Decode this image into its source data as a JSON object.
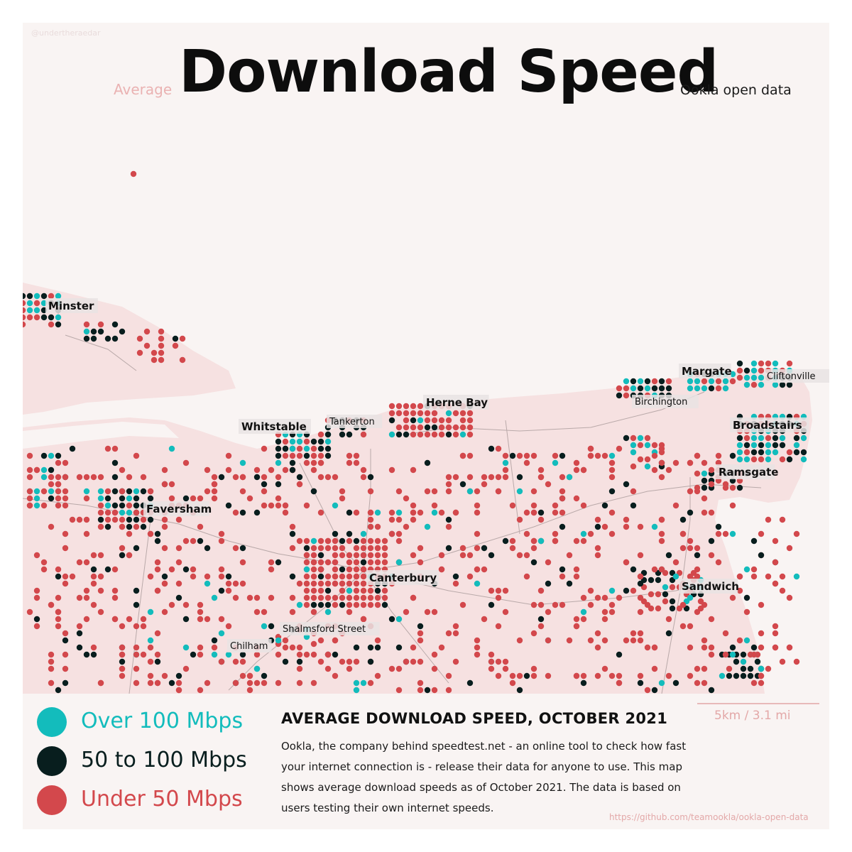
{
  "header": {
    "credit": "@undertheraedar",
    "title": "Download Speed",
    "prefix": "Average",
    "suffix": "Ookla open data"
  },
  "colors": {
    "background": "#f9f4f3",
    "land": "#f6e1e1",
    "over_100": "#13bcbc",
    "between_50_100": "#081e1e",
    "under_50": "#d3484c",
    "roads": "#b9a9a9"
  },
  "places": [
    {
      "name": "Minster",
      "bold": true
    },
    {
      "name": "Whitstable",
      "bold": true
    },
    {
      "name": "Tankerton",
      "bold": false
    },
    {
      "name": "Herne Bay",
      "bold": true
    },
    {
      "name": "Margate",
      "bold": true
    },
    {
      "name": "Cliftonville",
      "bold": false
    },
    {
      "name": "Birchington",
      "bold": false
    },
    {
      "name": "Broadstairs",
      "bold": true
    },
    {
      "name": "Ramsgate",
      "bold": true
    },
    {
      "name": "Faversham",
      "bold": true
    },
    {
      "name": "Canterbury",
      "bold": true
    },
    {
      "name": "Sandwich",
      "bold": true
    },
    {
      "name": "Shalmsford Street",
      "bold": false
    },
    {
      "name": "Chilham",
      "bold": false
    }
  ],
  "legend": [
    {
      "label": "Over 100 Mbps",
      "color": "#13bcbc",
      "text_color": "#13bcbc"
    },
    {
      "label": "50 to 100 Mbps",
      "color": "#081e1e",
      "text_color": "#081e1e"
    },
    {
      "label": "Under 50 Mbps",
      "color": "#d3484c",
      "text_color": "#d3484c"
    }
  ],
  "description": {
    "title": "AVERAGE DOWNLOAD SPEED, OCTOBER 2021",
    "body": "Ookla, the company behind speedtest.net - an online tool to check how fast your internet connection is - release their data for anyone to use. This map shows average download speeds as of October 2021. The data is based on users testing their own internet speeds."
  },
  "scale": {
    "label": "5km / 3.1 mi"
  },
  "source": "https://github.com/teamookla/ookla-open-data"
}
